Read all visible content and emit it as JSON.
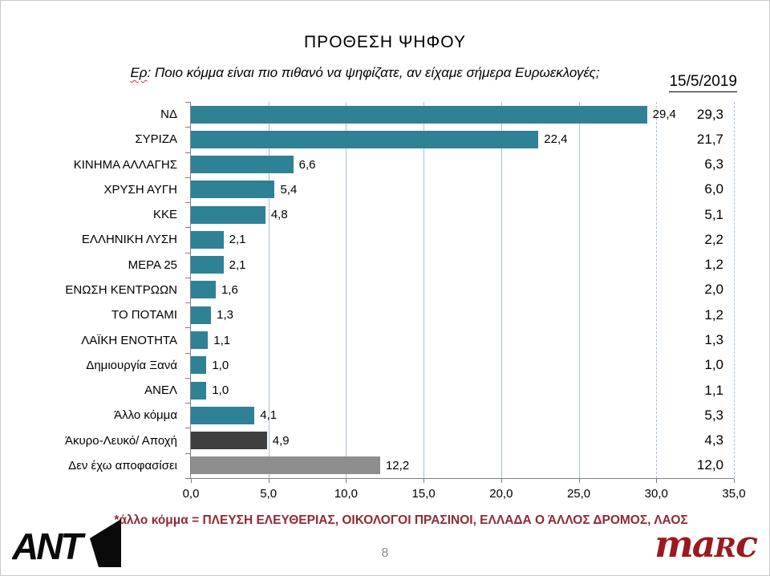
{
  "header": {
    "title": "ΠΡΟΘΕΣΗ ΨΗΦΟΥ",
    "subtitle_q": "Ερ",
    "subtitle_rest": ": Ποιο κόμμα είναι πιο πιθανό να ψηφίζατε, αν είχαμε σήμερα Ευρωεκλογές;",
    "date": "15/5/2019"
  },
  "chart_data": {
    "type": "bar",
    "orientation": "horizontal",
    "title": "ΠΡΟΘΕΣΗ ΨΗΦΟΥ",
    "subtitle": "Ερ: Ποιο κόμμα είναι πιο πιθανό να ψηφίζατε, αν είχαμε σήμερα Ευρωεκλογές;",
    "xlabel": "",
    "ylabel": "",
    "xlim": [
      0,
      35
    ],
    "x_ticks": [
      "0,0",
      "5,0",
      "10,0",
      "15,0",
      "20,0",
      "25,0",
      "30,0",
      "35,0"
    ],
    "grid": "vertical",
    "legend": "none",
    "series": [
      {
        "name": "bars",
        "values": [
          29.4,
          22.4,
          6.6,
          5.4,
          4.8,
          2.1,
          2.1,
          1.6,
          1.3,
          1.1,
          1.0,
          1.0,
          4.1,
          4.9,
          12.2
        ]
      },
      {
        "name": "15/5/2019",
        "values": [
          29.3,
          21.7,
          6.3,
          6.0,
          5.1,
          2.2,
          1.2,
          2.0,
          1.2,
          1.3,
          1.0,
          1.1,
          5.3,
          4.3,
          12.0
        ]
      }
    ],
    "categories": [
      "ΝΔ",
      "ΣΥΡΙΖΑ",
      "ΚΙΝΗΜΑ ΑΛΛΑΓΗΣ",
      "ΧΡΥΣΗ ΑΥΓΗ",
      "ΚΚΕ",
      "ΕΛΛΗΝΙΚΗ ΛΥΣΗ",
      "ΜΕΡΑ 25",
      "ΕΝΩΣΗ ΚΕΝΤΡΩΩΝ",
      "ΤΟ ΠΟΤΑΜΙ",
      "ΛΑΪΚΗ ΕΝΟΤΗΤΑ",
      "Δημιουργία Ξανά",
      "ΑΝΕΛ",
      "Άλλο κόμμα",
      "Άκυρο-Λευκό/ Αποχή",
      "Δεν έχω αποφασίσει"
    ],
    "rows": [
      {
        "label": "ΝΔ",
        "value": 29.4,
        "value_label": "29,4",
        "right_label": "29,3",
        "color": "#2f8196"
      },
      {
        "label": "ΣΥΡΙΖΑ",
        "value": 22.4,
        "value_label": "22,4",
        "right_label": "21,7",
        "color": "#2f8196"
      },
      {
        "label": "ΚΙΝΗΜΑ ΑΛΛΑΓΗΣ",
        "value": 6.6,
        "value_label": "6,6",
        "right_label": "6,3",
        "color": "#2f8196"
      },
      {
        "label": "ΧΡΥΣΗ ΑΥΓΗ",
        "value": 5.4,
        "value_label": "5,4",
        "right_label": "6,0",
        "color": "#2f8196"
      },
      {
        "label": "ΚΚΕ",
        "value": 4.8,
        "value_label": "4,8",
        "right_label": "5,1",
        "color": "#2f8196"
      },
      {
        "label": "ΕΛΛΗΝΙΚΗ ΛΥΣΗ",
        "value": 2.1,
        "value_label": "2,1",
        "right_label": "2,2",
        "color": "#2f8196"
      },
      {
        "label": "ΜΕΡΑ 25",
        "value": 2.1,
        "value_label": "2,1",
        "right_label": "1,2",
        "color": "#2f8196"
      },
      {
        "label": "ΕΝΩΣΗ ΚΕΝΤΡΩΩΝ",
        "value": 1.6,
        "value_label": "1,6",
        "right_label": "2,0",
        "color": "#2f8196"
      },
      {
        "label": "ΤΟ ΠΟΤΑΜΙ",
        "value": 1.3,
        "value_label": "1,3",
        "right_label": "1,2",
        "color": "#2f8196"
      },
      {
        "label": "ΛΑΪΚΗ ΕΝΟΤΗΤΑ",
        "value": 1.1,
        "value_label": "1,1",
        "right_label": "1,3",
        "color": "#2f8196"
      },
      {
        "label": "Δημιουργία Ξανά",
        "value": 1.0,
        "value_label": "1,0",
        "right_label": "1,0",
        "color": "#2f8196"
      },
      {
        "label": "ΑΝΕΛ",
        "value": 1.0,
        "value_label": "1,0",
        "right_label": "1,1",
        "color": "#2f8196"
      },
      {
        "label": "Άλλο κόμμα",
        "value": 4.1,
        "value_label": "4,1",
        "right_label": "5,3",
        "color": "#2f8196"
      },
      {
        "label": "Άκυρο-Λευκό/ Αποχή",
        "value": 4.9,
        "value_label": "4,9",
        "right_label": "4,3",
        "color": "#3f3f3f"
      },
      {
        "label": "Δεν έχω αποφασίσει",
        "value": 12.2,
        "value_label": "12,2",
        "right_label": "12,0",
        "color": "#8e8e8e"
      }
    ],
    "colors": {
      "bar_default": "#2f8196",
      "bar_invalid_blank": "#3f3f3f",
      "bar_undecided": "#8e8e8e",
      "gridline": "#a8c2db",
      "axis": "#7f7f7f"
    }
  },
  "footer": {
    "note": "*άλλο κόμμα = ΠΛΕΥΣΗ ΕΛΕΥΘΕΡΙΑΣ, ΟΙΚΟΛΟΓΟΙ ΠΡΑΣΙΝΟΙ, ΕΛΛΑΔΑ Ο ΆΛΛΟΣ ΔΡΟΜΟΣ, ΛΑΟΣ",
    "note_color": "#8e2b33",
    "page_number": "8",
    "ant1_logo_text": "ANT",
    "marc_logo": {
      "part1": "ma",
      "part2": "R",
      "part3": "c"
    }
  }
}
